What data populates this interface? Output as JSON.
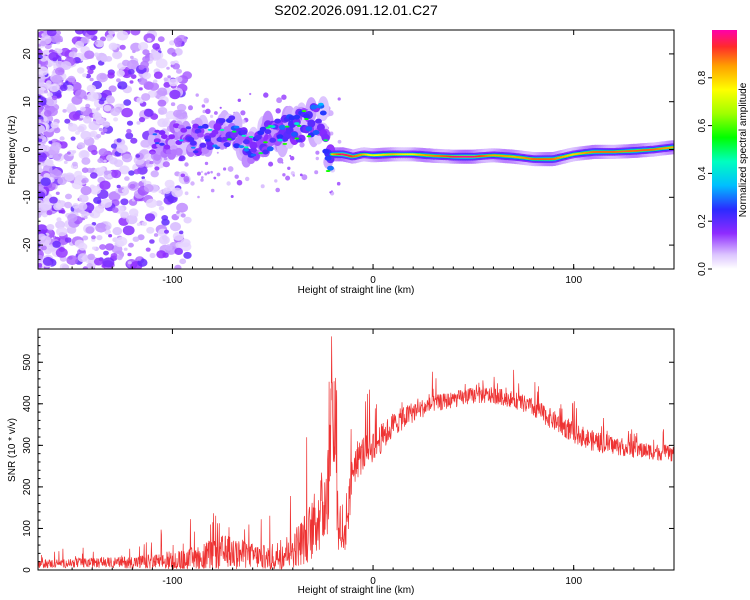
{
  "title": "S202.2026.091.12.01.C27",
  "chart_data": [
    {
      "type": "heatmap",
      "name": "spectrogram",
      "xlabel": "Height of straight line (km)",
      "ylabel": "Frequency (Hz)",
      "xlim": [
        -167,
        150
      ],
      "ylim": [
        -25,
        25
      ],
      "xticks": [
        -100,
        0,
        100
      ],
      "yticks": [
        -20,
        -10,
        0,
        10,
        20
      ],
      "ridge": {
        "x": [
          -110,
          -100,
          -90,
          -80,
          -70,
          -62,
          -55,
          -45,
          -35,
          -30,
          -25,
          -22,
          -20,
          -15,
          -10,
          -5,
          0,
          10,
          20,
          30,
          40,
          50,
          60,
          70,
          80,
          90,
          100,
          110,
          120,
          130,
          140,
          150
        ],
        "freq": [
          1,
          2,
          2,
          3,
          4,
          0,
          2,
          4,
          5,
          6,
          7,
          -3,
          -1,
          -1,
          -1.5,
          -1,
          -1.2,
          -1,
          -1,
          -1.3,
          -1.5,
          -1.5,
          -1.2,
          -1.5,
          -2,
          -2,
          -1,
          -0.5,
          -0.5,
          -0.3,
          0,
          0.5
        ],
        "amplitude": [
          0.25,
          0.3,
          0.35,
          0.4,
          0.5,
          0.45,
          0.5,
          0.55,
          0.55,
          0.55,
          0.5,
          0.6,
          0.8,
          0.95,
          0.9,
          0.85,
          0.7,
          0.8,
          0.75,
          0.85,
          0.95,
          0.95,
          0.85,
          0.8,
          0.9,
          0.85,
          0.8,
          0.85,
          0.9,
          0.85,
          0.9,
          0.8
        ]
      },
      "colorbar": {
        "label": "Normalized spectral amplitude",
        "ticks": [
          "0.0",
          "0.2",
          "0.4",
          "0.6",
          "0.8"
        ],
        "range": [
          0,
          1
        ]
      }
    },
    {
      "type": "line",
      "name": "snr",
      "xlabel": "Height of straight line (km)",
      "ylabel": "SNR (10 * v/v)",
      "xlim": [
        -167,
        150
      ],
      "ylim": [
        0,
        580
      ],
      "xticks": [
        -100,
        0,
        100
      ],
      "yticks": [
        0,
        100,
        200,
        300,
        400,
        500
      ],
      "color": "#ee3333",
      "envelope": {
        "x": [
          -167,
          -130,
          -105,
          -100,
          -95,
          -90,
          -85,
          -80,
          -75,
          -70,
          -65,
          -60,
          -55,
          -50,
          -45,
          -40,
          -35,
          -30,
          -25,
          -22,
          -20,
          -18,
          -15,
          -12,
          -10,
          -5,
          0,
          5,
          10,
          20,
          30,
          40,
          50,
          60,
          70,
          80,
          90,
          100,
          110,
          120,
          130,
          140,
          150
        ],
        "base": [
          15,
          18,
          20,
          20,
          22,
          25,
          30,
          35,
          40,
          40,
          38,
          35,
          30,
          30,
          40,
          50,
          70,
          100,
          150,
          200,
          250,
          150,
          60,
          150,
          250,
          280,
          300,
          320,
          350,
          380,
          400,
          410,
          420,
          420,
          410,
          390,
          360,
          330,
          310,
          300,
          290,
          285,
          280
        ],
        "noise": [
          20,
          25,
          40,
          60,
          50,
          60,
          70,
          80,
          90,
          80,
          70,
          60,
          60,
          70,
          80,
          90,
          120,
          150,
          200,
          250,
          300,
          200,
          80,
          120,
          100,
          90,
          80,
          70,
          60,
          50,
          40,
          40,
          40,
          40,
          40,
          45,
          50,
          50,
          50,
          45,
          40,
          40,
          40
        ]
      }
    }
  ]
}
